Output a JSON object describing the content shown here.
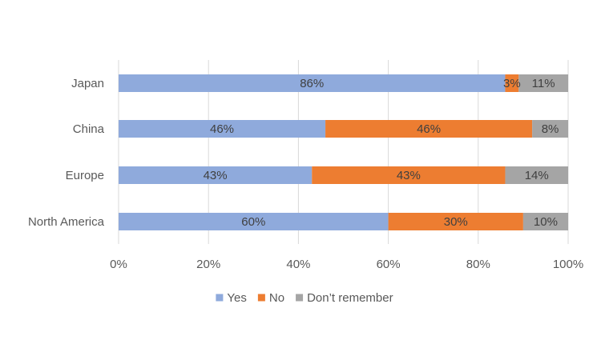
{
  "chart_data": {
    "type": "bar",
    "orientation": "horizontal",
    "stacked": "percent",
    "categories": [
      "Japan",
      "China",
      "Europe",
      "North America"
    ],
    "series": [
      {
        "name": "Yes",
        "values": [
          86,
          46,
          43,
          60
        ],
        "color": "#8FAADC"
      },
      {
        "name": "No",
        "values": [
          3,
          46,
          43,
          30
        ],
        "color": "#ED7D31"
      },
      {
        "name": "Don’t remember",
        "values": [
          11,
          8,
          14,
          10
        ],
        "color": "#A5A5A5"
      }
    ],
    "data_label_suffix": "%",
    "x_ticks": [
      "0%",
      "20%",
      "40%",
      "60%",
      "80%",
      "100%"
    ],
    "xlim": [
      0,
      100
    ],
    "grid": true,
    "legend_position": "bottom",
    "title": "",
    "xlabel": "",
    "ylabel": ""
  }
}
